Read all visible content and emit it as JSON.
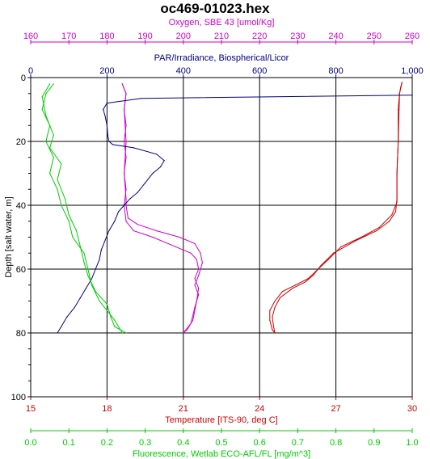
{
  "chart_data": {
    "type": "line",
    "title": "oc469-01023.hex",
    "y_axis": {
      "label": "Depth [salt water, m]",
      "range": [
        0,
        100
      ],
      "inverted": true,
      "ticks": [
        "0",
        "20",
        "40",
        "60",
        "80",
        "100"
      ],
      "color": "#000000"
    },
    "x_axes": [
      {
        "id": "oxygen",
        "position": "top-1",
        "label": "Oxygen, SBE 43 [umol/Kg]",
        "range": [
          160,
          260
        ],
        "ticks": [
          "160",
          "170",
          "180",
          "190",
          "200",
          "210",
          "220",
          "230",
          "240",
          "250",
          "260"
        ],
        "color": "#cc00cc"
      },
      {
        "id": "par",
        "position": "top-2",
        "label": "PAR/Irradiance, Biospherical/Licor",
        "range": [
          0,
          1000
        ],
        "ticks": [
          "0",
          "200",
          "400",
          "600",
          "800",
          "1,000"
        ],
        "color": "#000080"
      },
      {
        "id": "temperature",
        "position": "bottom-1",
        "label": "Temperature [ITS-90, deg C]",
        "range": [
          15,
          30
        ],
        "ticks": [
          "15",
          "18",
          "21",
          "24",
          "27",
          "30"
        ],
        "color": "#cc0000"
      },
      {
        "id": "fluorescence",
        "position": "bottom-2",
        "label": "Fluorescence, Wetlab ECO-AFL/FL [mg/m^3]",
        "range": [
          0,
          1.0
        ],
        "ticks": [
          "0.0",
          "0.1",
          "0.2",
          "0.3",
          "0.4",
          "0.5",
          "0.6",
          "0.7",
          "0.8",
          "0.9",
          "1.0"
        ],
        "color": "#00cc00"
      }
    ],
    "grid": true,
    "series": [
      {
        "axis": "temperature",
        "color": "#cc0000",
        "profiles": [
          [
            [
              29.6,
              1.5
            ],
            [
              29.55,
              3
            ],
            [
              29.5,
              5
            ],
            [
              29.45,
              10
            ],
            [
              29.45,
              20
            ],
            [
              29.4,
              30
            ],
            [
              29.4,
              38
            ],
            [
              29.35,
              42
            ],
            [
              29.1,
              45
            ],
            [
              28.6,
              48
            ],
            [
              27.8,
              51
            ],
            [
              26.9,
              55
            ],
            [
              26.4,
              59
            ],
            [
              26.1,
              62
            ],
            [
              25.8,
              64
            ],
            [
              25.3,
              66
            ],
            [
              24.8,
              69
            ],
            [
              24.6,
              72
            ],
            [
              24.5,
              75
            ],
            [
              24.55,
              78
            ],
            [
              24.6,
              80
            ]
          ],
          [
            [
              29.6,
              1.5
            ],
            [
              29.5,
              5
            ],
            [
              29.45,
              20
            ],
            [
              29.4,
              30
            ],
            [
              29.4,
              39
            ],
            [
              29.2,
              43
            ],
            [
              28.7,
              47
            ],
            [
              28.0,
              50
            ],
            [
              27.2,
              53
            ],
            [
              26.7,
              57
            ],
            [
              26.3,
              60
            ],
            [
              25.9,
              63
            ],
            [
              25.4,
              65
            ],
            [
              24.9,
              67
            ],
            [
              24.6,
              70
            ],
            [
              24.4,
              73
            ],
            [
              24.4,
              76
            ],
            [
              24.5,
              79
            ],
            [
              24.6,
              80
            ]
          ]
        ]
      },
      {
        "axis": "oxygen",
        "color": "#cc00cc",
        "profiles": [
          [
            [
              184,
              2
            ],
            [
              185,
              5
            ],
            [
              184.5,
              10
            ],
            [
              185,
              15
            ],
            [
              184.5,
              20
            ],
            [
              185,
              25
            ],
            [
              184.5,
              30
            ],
            [
              185,
              35
            ],
            [
              184.5,
              40
            ],
            [
              185,
              45
            ],
            [
              187,
              48
            ],
            [
              192,
              50
            ],
            [
              198,
              53
            ],
            [
              202,
              55
            ],
            [
              203.5,
              57
            ],
            [
              204,
              60
            ],
            [
              203,
              63
            ],
            [
              204,
              66
            ],
            [
              203.5,
              70
            ],
            [
              203,
              73
            ],
            [
              202.5,
              76
            ],
            [
              201,
              79
            ],
            [
              200,
              80
            ]
          ],
          [
            [
              184,
              2
            ],
            [
              185,
              5
            ],
            [
              184.5,
              10
            ],
            [
              185,
              20
            ],
            [
              184.5,
              30
            ],
            [
              185,
              38
            ],
            [
              185,
              40
            ],
            [
              185.5,
              44
            ],
            [
              188,
              46
            ],
            [
              193,
              48
            ],
            [
              199,
              50
            ],
            [
              203,
              52
            ],
            [
              204.5,
              55
            ],
            [
              205,
              58
            ],
            [
              204,
              62
            ],
            [
              203,
              65
            ],
            [
              204,
              68
            ],
            [
              203,
              72
            ],
            [
              202,
              77
            ],
            [
              200,
              80
            ]
          ]
        ]
      },
      {
        "axis": "par",
        "color": "#000080",
        "profiles": [
          [
            [
              1000,
              5.5
            ],
            [
              290,
              6.5
            ],
            [
              200,
              8
            ],
            [
              190,
              10
            ],
            [
              195,
              12
            ],
            [
              200,
              15
            ],
            [
              202,
              18
            ],
            [
              205,
              20
            ],
            [
              215,
              21
            ],
            [
              270,
              22
            ],
            [
              330,
              24
            ],
            [
              350,
              26
            ],
            [
              340,
              28
            ],
            [
              320,
              30
            ],
            [
              300,
              33
            ],
            [
              280,
              36
            ],
            [
              260,
              38
            ],
            [
              245,
              40
            ],
            [
              230,
              42
            ],
            [
              220,
              45
            ],
            [
              205,
              48
            ],
            [
              195,
              51
            ],
            [
              185,
              54
            ],
            [
              180,
              57
            ],
            [
              170,
              60
            ],
            [
              160,
              63
            ],
            [
              145,
              66
            ],
            [
              130,
              69
            ],
            [
              115,
              72
            ],
            [
              95,
              75
            ],
            [
              80,
              78
            ],
            [
              70,
              80
            ]
          ]
        ]
      },
      {
        "axis": "fluorescence",
        "color": "#00cc00",
        "profiles": [
          [
            [
              0.06,
              2
            ],
            [
              0.04,
              5
            ],
            [
              0.03,
              10
            ],
            [
              0.05,
              15
            ],
            [
              0.04,
              20
            ],
            [
              0.06,
              25
            ],
            [
              0.05,
              30
            ],
            [
              0.07,
              35
            ],
            [
              0.08,
              40
            ],
            [
              0.1,
              45
            ],
            [
              0.11,
              50
            ],
            [
              0.14,
              55
            ],
            [
              0.15,
              60
            ],
            [
              0.16,
              65
            ],
            [
              0.18,
              70
            ],
            [
              0.2,
              73
            ],
            [
              0.22,
              76
            ],
            [
              0.24,
              80
            ]
          ],
          [
            [
              0.05,
              2
            ],
            [
              0.03,
              6
            ],
            [
              0.04,
              12
            ],
            [
              0.06,
              18
            ],
            [
              0.05,
              22
            ],
            [
              0.08,
              27
            ],
            [
              0.07,
              32
            ],
            [
              0.09,
              38
            ],
            [
              0.1,
              43
            ],
            [
              0.12,
              48
            ],
            [
              0.13,
              53
            ],
            [
              0.14,
              58
            ],
            [
              0.15,
              62
            ],
            [
              0.17,
              67
            ],
            [
              0.2,
              71
            ],
            [
              0.21,
              75
            ],
            [
              0.22,
              78
            ],
            [
              0.25,
              80
            ]
          ]
        ]
      }
    ]
  }
}
